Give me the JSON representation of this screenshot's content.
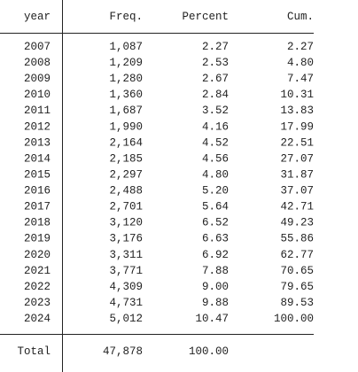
{
  "table": {
    "header": [
      "year",
      "Freq.",
      "Percent",
      "Cum."
    ],
    "rows": [
      [
        "2007",
        "1,087",
        "2.27",
        "2.27"
      ],
      [
        "2008",
        "1,209",
        "2.53",
        "4.80"
      ],
      [
        "2009",
        "1,280",
        "2.67",
        "7.47"
      ],
      [
        "2010",
        "1,360",
        "2.84",
        "10.31"
      ],
      [
        "2011",
        "1,687",
        "3.52",
        "13.83"
      ],
      [
        "2012",
        "1,990",
        "4.16",
        "17.99"
      ],
      [
        "2013",
        "2,164",
        "4.52",
        "22.51"
      ],
      [
        "2014",
        "2,185",
        "4.56",
        "27.07"
      ],
      [
        "2015",
        "2,297",
        "4.80",
        "31.87"
      ],
      [
        "2016",
        "2,488",
        "5.20",
        "37.07"
      ],
      [
        "2017",
        "2,701",
        "5.64",
        "42.71"
      ],
      [
        "2018",
        "3,120",
        "6.52",
        "49.23"
      ],
      [
        "2019",
        "3,176",
        "6.63",
        "55.86"
      ],
      [
        "2020",
        "3,311",
        "6.92",
        "62.77"
      ],
      [
        "2021",
        "3,771",
        "7.88",
        "70.65"
      ],
      [
        "2022",
        "4,309",
        "9.00",
        "79.65"
      ],
      [
        "2023",
        "4,731",
        "9.88",
        "89.53"
      ],
      [
        "2024",
        "5,012",
        "10.47",
        "100.00"
      ]
    ],
    "total": [
      "Total",
      "47,878",
      "100.00"
    ]
  }
}
